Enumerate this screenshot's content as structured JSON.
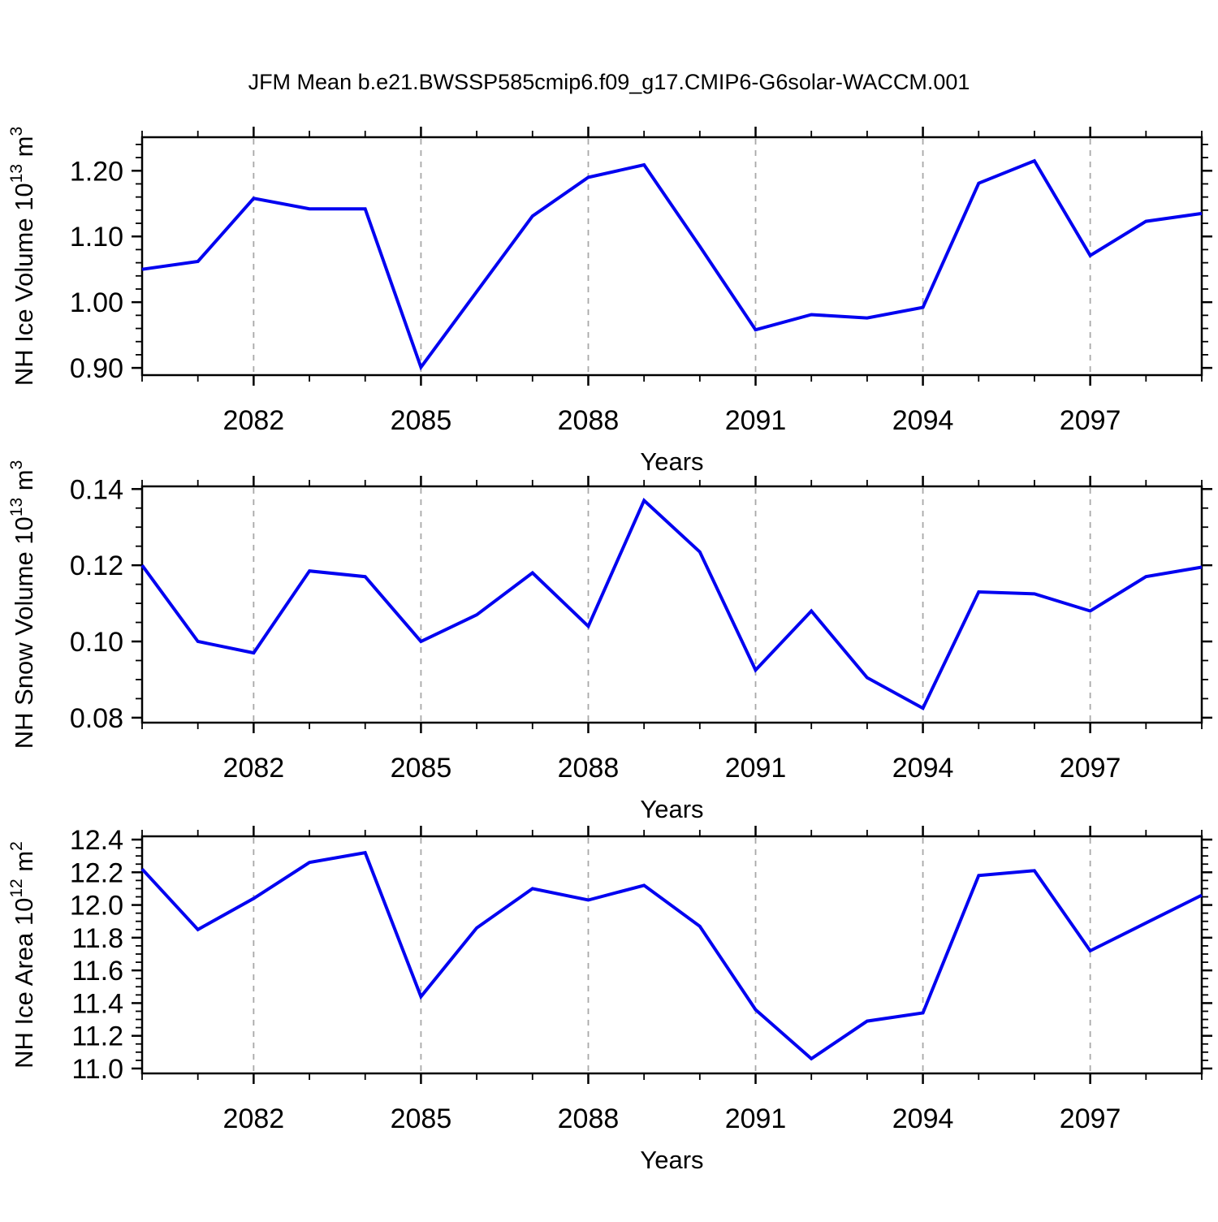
{
  "title": "JFM Mean b.e21.BWSSP585cmip6.f09_g17.CMIP6-G6solar-WACCM.001",
  "colors": {
    "line": "#0202f0",
    "frame": "#000000",
    "gridline": "#a8a8a8",
    "background": "#ffffff"
  },
  "chart_data": [
    {
      "type": "line",
      "title": "JFM Mean b.e21.BWSSP585cmip6.f09_g17.CMIP6-G6solar-WACCM.001",
      "xlabel": "Years",
      "ylabel_segments": [
        {
          "t": "NH Ice Volume 10",
          "sup": false
        },
        {
          "t": "13",
          "sup": true
        },
        {
          "t": " m",
          "sup": false
        },
        {
          "t": "3",
          "sup": true
        }
      ],
      "x": [
        2080,
        2081,
        2082,
        2083,
        2084,
        2085,
        2086,
        2087,
        2088,
        2089,
        2090,
        2091,
        2092,
        2093,
        2094,
        2095,
        2096,
        2097,
        2098,
        2099
      ],
      "values": [
        1.05,
        1.062,
        1.158,
        1.142,
        1.142,
        0.901,
        1.016,
        1.131,
        1.19,
        1.209,
        1.085,
        0.958,
        0.981,
        0.976,
        0.992,
        1.181,
        1.215,
        1.071,
        1.123,
        1.135
      ],
      "x_major_ticks": [
        2082,
        2085,
        2088,
        2091,
        2094,
        2097
      ],
      "x_tick_labels": [
        "2082",
        "2085",
        "2088",
        "2091",
        "2094",
        "2097"
      ],
      "xlim": [
        2080,
        2099
      ],
      "ylim": [
        0.889,
        1.251
      ],
      "y_major_ticks": [
        0.9,
        1.0,
        1.1,
        1.2
      ],
      "y_tick_labels": [
        "0.90",
        "1.00",
        "1.10",
        "1.20"
      ],
      "y_minor_step": 0.02,
      "y_decimals": 2,
      "grid": "vertical-dashed-at-major-x",
      "legend": "none"
    },
    {
      "type": "line",
      "title": "",
      "xlabel": "Years",
      "ylabel_segments": [
        {
          "t": "NH Snow Volume 10",
          "sup": false
        },
        {
          "t": "13",
          "sup": true
        },
        {
          "t": " m",
          "sup": false
        },
        {
          "t": "3",
          "sup": true
        }
      ],
      "x": [
        2080,
        2081,
        2082,
        2083,
        2084,
        2085,
        2086,
        2087,
        2088,
        2089,
        2090,
        2091,
        2092,
        2093,
        2094,
        2095,
        2096,
        2097,
        2098,
        2099
      ],
      "values": [
        0.12,
        0.1,
        0.097,
        0.1185,
        0.117,
        0.1,
        0.107,
        0.118,
        0.104,
        0.137,
        0.1235,
        0.0925,
        0.108,
        0.0905,
        0.0825,
        0.113,
        0.1125,
        0.108,
        0.117,
        0.1195
      ],
      "x_major_ticks": [
        2082,
        2085,
        2088,
        2091,
        2094,
        2097
      ],
      "x_tick_labels": [
        "2082",
        "2085",
        "2088",
        "2091",
        "2094",
        "2097"
      ],
      "xlim": [
        2080,
        2099
      ],
      "ylim": [
        0.0787,
        0.1407
      ],
      "y_major_ticks": [
        0.08,
        0.1,
        0.12,
        0.14
      ],
      "y_tick_labels": [
        "0.08",
        "0.10",
        "0.12",
        "0.14"
      ],
      "y_minor_step": 0.005,
      "y_decimals": 2,
      "grid": "vertical-dashed-at-major-x",
      "legend": "none"
    },
    {
      "type": "line",
      "title": "",
      "xlabel": "Years",
      "ylabel_segments": [
        {
          "t": "NH Ice Area 10",
          "sup": false
        },
        {
          "t": "12",
          "sup": true
        },
        {
          "t": " m",
          "sup": false
        },
        {
          "t": "2",
          "sup": true
        }
      ],
      "x": [
        2080,
        2081,
        2082,
        2083,
        2084,
        2085,
        2086,
        2087,
        2088,
        2089,
        2090,
        2091,
        2092,
        2093,
        2094,
        2095,
        2096,
        2097,
        2098,
        2099
      ],
      "values": [
        12.22,
        11.85,
        12.04,
        12.26,
        12.32,
        11.44,
        11.86,
        12.1,
        12.03,
        12.12,
        11.87,
        11.36,
        11.06,
        11.29,
        11.34,
        12.18,
        12.21,
        11.72,
        11.89,
        12.06
      ],
      "x_major_ticks": [
        2082,
        2085,
        2088,
        2091,
        2094,
        2097
      ],
      "x_tick_labels": [
        "2082",
        "2085",
        "2088",
        "2091",
        "2094",
        "2097"
      ],
      "xlim": [
        2080,
        2099
      ],
      "ylim": [
        10.97,
        12.42
      ],
      "y_major_ticks": [
        11.0,
        11.2,
        11.4,
        11.6,
        11.8,
        12.0,
        12.2,
        12.4
      ],
      "y_tick_labels": [
        "11.0",
        "11.2",
        "11.4",
        "11.6",
        "11.8",
        "12.0",
        "12.2",
        "12.4"
      ],
      "y_minor_step": 0.05,
      "y_decimals": 1,
      "grid": "vertical-dashed-at-major-x",
      "legend": "none"
    }
  ],
  "layout_note": ""
}
